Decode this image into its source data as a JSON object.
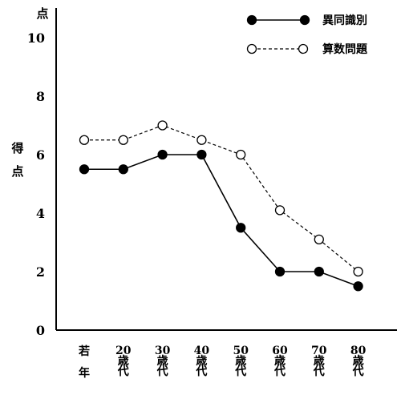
{
  "chart_data": {
    "type": "line",
    "title": "",
    "xlabel": "",
    "ylabel": "得点",
    "y_unit_label": "点",
    "ylim": [
      0,
      10.2
    ],
    "yticks": [
      "0",
      "2",
      "4",
      "6",
      "8",
      "10"
    ],
    "ytick_values": [
      0,
      2,
      4,
      6,
      8,
      10
    ],
    "grid": false,
    "legend_position": "top-right",
    "categories": [
      [
        "若",
        "年"
      ],
      [
        "20",
        "歳",
        "代"
      ],
      [
        "30",
        "歳",
        "代"
      ],
      [
        "40",
        "歳",
        "代"
      ],
      [
        "50",
        "歳",
        "代"
      ],
      [
        "60",
        "歳",
        "代"
      ],
      [
        "70",
        "歳",
        "代"
      ],
      [
        "80",
        "歳",
        "代"
      ]
    ],
    "series": [
      {
        "name": "異同識別",
        "marker": "filled-circle",
        "line": "solid",
        "color": "#000000",
        "values": [
          5.5,
          5.5,
          6.0,
          6.0,
          3.5,
          2.0,
          2.0,
          1.5
        ]
      },
      {
        "name": "算数問題",
        "marker": "open-circle",
        "line": "dashed",
        "color": "#000000",
        "values": [
          6.5,
          6.5,
          7.0,
          6.5,
          6.0,
          4.1,
          3.1,
          2.0
        ]
      }
    ]
  }
}
